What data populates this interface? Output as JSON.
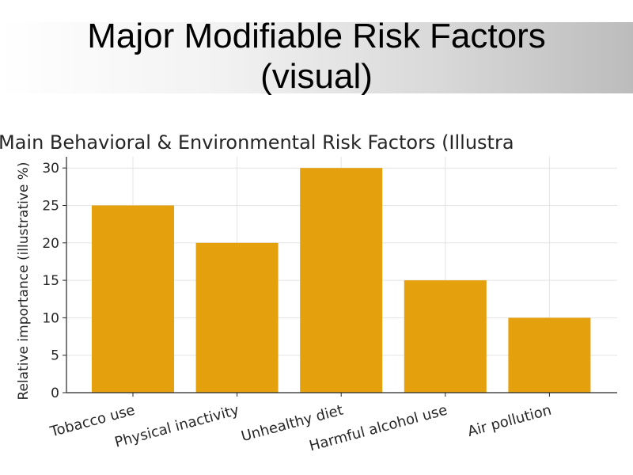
{
  "slide": {
    "title_line1": "Major Modifiable Risk Factors",
    "title_line2": "(visual)"
  },
  "chart_data": {
    "type": "bar",
    "title": "Main Behavioral & Environmental Risk Factors (Illustra",
    "xlabel": "",
    "ylabel": "Relative importance (illustrative %)",
    "categories": [
      "Tobacco use",
      "Physical inactivity",
      "Unhealthy diet",
      "Harmful alcohol use",
      "Air pollution"
    ],
    "values": [
      25,
      20,
      30,
      15,
      10
    ],
    "ylim": [
      0,
      31.5
    ],
    "yticks": [
      0,
      5,
      10,
      15,
      20,
      25,
      30
    ],
    "bar_color": "#E5A00D",
    "grid": true,
    "legend": "none"
  }
}
